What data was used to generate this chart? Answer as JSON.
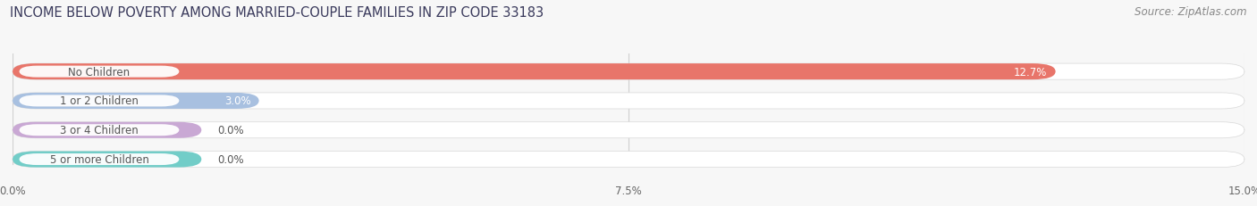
{
  "title": "INCOME BELOW POVERTY AMONG MARRIED-COUPLE FAMILIES IN ZIP CODE 33183",
  "source": "Source: ZipAtlas.com",
  "categories": [
    "No Children",
    "1 or 2 Children",
    "3 or 4 Children",
    "5 or more Children"
  ],
  "values": [
    12.7,
    3.0,
    0.0,
    0.0
  ],
  "bar_colors": [
    "#e8756a",
    "#a8c0e0",
    "#c9a8d4",
    "#72cdc8"
  ],
  "xlim": [
    0,
    15.0
  ],
  "xticks": [
    0.0,
    7.5,
    15.0
  ],
  "xtick_labels": [
    "0.0%",
    "7.5%",
    "15.0%"
  ],
  "background_color": "#f7f7f7",
  "title_fontsize": 10.5,
  "source_fontsize": 8.5,
  "label_fontsize": 8.5,
  "value_fontsize": 8.5
}
